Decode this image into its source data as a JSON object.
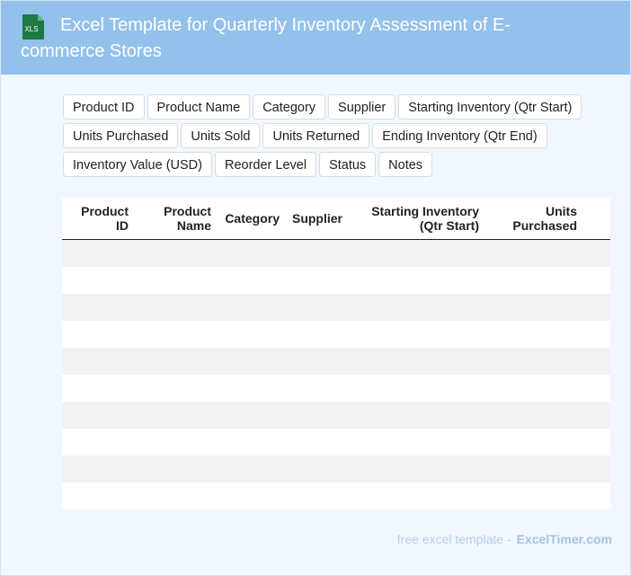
{
  "header": {
    "title": "Excel Template for Quarterly Inventory Assessment of E-commerce Stores",
    "icon": "XLS"
  },
  "tags": [
    "Product ID",
    "Product Name",
    "Category",
    "Supplier",
    "Starting Inventory (Qtr Start)",
    "Units Purchased",
    "Units Sold",
    "Units Returned",
    "Ending Inventory (Qtr End)",
    "Inventory Value (USD)",
    "Reorder Level",
    "Status",
    "Notes"
  ],
  "table": {
    "columns": [
      "Product ID",
      "Product Name",
      "Category",
      "Supplier",
      "Starting Inventory (Qtr Start)",
      "Units Purchased"
    ]
  },
  "footer": {
    "text": "free excel template -",
    "link": "ExcelTimer.com"
  }
}
